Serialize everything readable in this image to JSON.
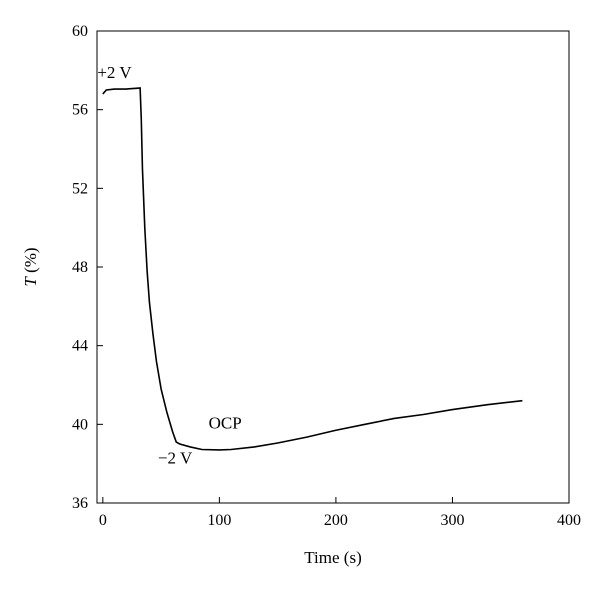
{
  "chart_data": {
    "type": "line",
    "xlabel": "Time (s)",
    "ylabel_symbol": "T",
    "ylabel_unit": " (%)",
    "xlim": [
      -5,
      400
    ],
    "ylim": [
      36,
      60
    ],
    "xticks": [
      0,
      100,
      200,
      300,
      400
    ],
    "yticks": [
      36,
      40,
      44,
      48,
      52,
      56,
      60
    ],
    "grid": false,
    "line_color": "#000000",
    "series": [
      {
        "values": [
          [
            0,
            56.8
          ],
          [
            3,
            57.0
          ],
          [
            10,
            57.05
          ],
          [
            20,
            57.05
          ],
          [
            32,
            57.1
          ],
          [
            33,
            55.5
          ],
          [
            34,
            53.0
          ],
          [
            36,
            50.0
          ],
          [
            38,
            47.8
          ],
          [
            40,
            46.2
          ],
          [
            43,
            44.6
          ],
          [
            46,
            43.2
          ],
          [
            50,
            41.8
          ],
          [
            55,
            40.6
          ],
          [
            60,
            39.6
          ],
          [
            63,
            39.1
          ],
          [
            66,
            39.0
          ],
          [
            75,
            38.85
          ],
          [
            85,
            38.72
          ],
          [
            100,
            38.7
          ],
          [
            110,
            38.72
          ],
          [
            130,
            38.85
          ],
          [
            150,
            39.05
          ],
          [
            175,
            39.35
          ],
          [
            200,
            39.7
          ],
          [
            225,
            40.0
          ],
          [
            250,
            40.3
          ],
          [
            275,
            40.5
          ],
          [
            300,
            40.75
          ],
          [
            330,
            41.0
          ],
          [
            360,
            41.2
          ]
        ]
      }
    ],
    "annotations": [
      {
        "text": "+2 V",
        "x": 10,
        "y": 57.6
      },
      {
        "text": "OCP",
        "x": 105,
        "y": 39.8
      },
      {
        "text": "−2 V",
        "x": 62,
        "y": 38.0
      }
    ]
  }
}
